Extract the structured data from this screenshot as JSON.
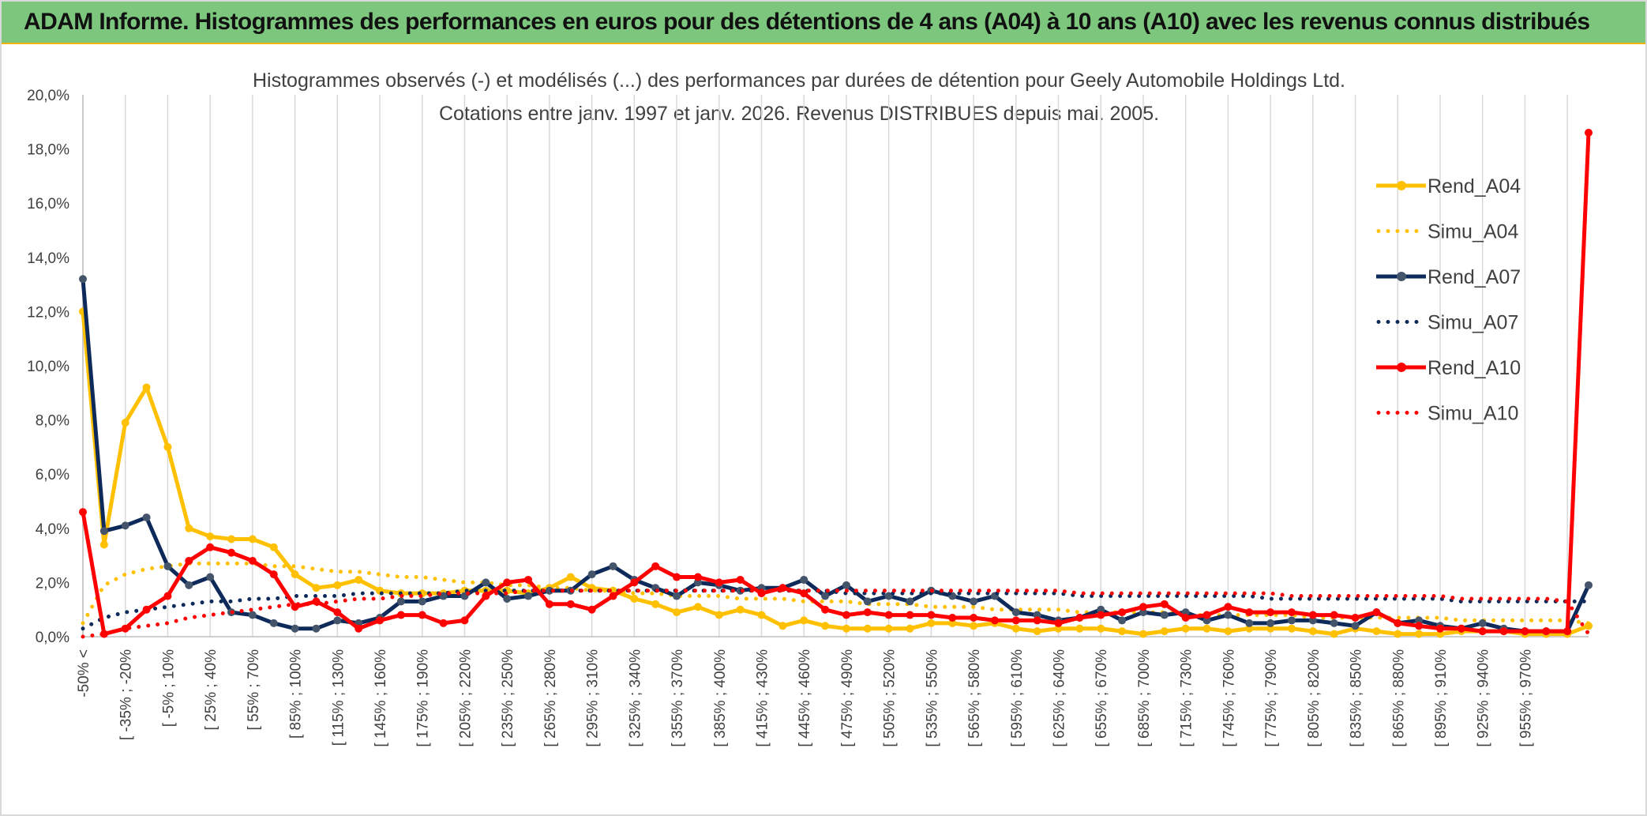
{
  "header": {
    "title": "ADAM Informe. Histogrammes des performances en euros pour des détentions de 4 ans (A04) à 10 ans (A10) avec les revenus connus distribués"
  },
  "chart_data": {
    "type": "line",
    "title_line1": "Histogrammes observés (-) et modélisés (...) des performances par durées de détention pour Geely Automobile Holdings Ltd.",
    "title_line2": "Cotations entre janv. 1997 et janv. 2026. Revenus DISTRIBUES depuis mai. 2005.",
    "ylim": [
      0,
      20
    ],
    "yticks": [
      "0,0%",
      "2,0%",
      "4,0%",
      "6,0%",
      "8,0%",
      "10,0%",
      "12,0%",
      "14,0%",
      "16,0%",
      "18,0%",
      "20,0%"
    ],
    "grid": "vertical",
    "legend_position": "right",
    "x_labels": [
      "-50% <",
      "[ -35% ; -20%",
      "[ -5% ; 10%",
      "[ 25% ; 40%",
      "[ 55% ; 70%",
      "[ 85% ; 100%",
      "[ 115% ; 130%",
      "[ 145% ; 160%",
      "[ 175% ; 190%",
      "[ 205% ; 220%",
      "[ 235% ; 250%",
      "[ 265% ; 280%",
      "[ 295% ; 310%",
      "[ 325% ; 340%",
      "[ 355% ; 370%",
      "[ 385% ; 400%",
      "[ 415% ; 430%",
      "[ 445% ; 460%",
      "[ 475% ; 490%",
      "[ 505% ; 520%",
      "[ 535% ; 550%",
      "[ 565% ; 580%",
      "[ 595% ; 610%",
      "[ 625% ; 640%",
      "[ 655% ; 670%",
      "[ 685% ; 700%",
      "[ 715% ; 730%",
      "[ 745% ; 760%",
      "[ 775% ; 790%",
      "[ 805% ; 820%",
      "[ 835% ; 850%",
      "[ 865% ; 880%",
      "[ 895% ; 910%",
      "[ 925% ; 940%",
      "[ 955% ; 970%"
    ],
    "series": [
      {
        "name": "Rend_A04",
        "style": "solid",
        "color": "#ffc000",
        "values": [
          12.0,
          3.4,
          7.9,
          9.2,
          7.0,
          4.0,
          3.7,
          3.6,
          3.6,
          3.3,
          2.3,
          1.8,
          1.9,
          2.1,
          1.7,
          1.6,
          1.6,
          1.6,
          1.7,
          1.7,
          1.7,
          1.6,
          1.8,
          2.2,
          1.8,
          1.7,
          1.4,
          1.2,
          0.9,
          1.1,
          0.8,
          1.0,
          0.8,
          0.4,
          0.6,
          0.4,
          0.3,
          0.3,
          0.3,
          0.3,
          0.5,
          0.5,
          0.4,
          0.5,
          0.3,
          0.2,
          0.3,
          0.3,
          0.3,
          0.2,
          0.1,
          0.2,
          0.3,
          0.3,
          0.2,
          0.3,
          0.3,
          0.3,
          0.2,
          0.1,
          0.3,
          0.2,
          0.1,
          0.1,
          0.1,
          0.2,
          0.2,
          0.2,
          0.1,
          0.1,
          0.1,
          0.4
        ]
      },
      {
        "name": "Simu_A04",
        "style": "dotted",
        "color": "#ffc000",
        "values": [
          0.5,
          1.9,
          2.3,
          2.5,
          2.6,
          2.7,
          2.7,
          2.7,
          2.7,
          2.6,
          2.6,
          2.5,
          2.4,
          2.4,
          2.3,
          2.2,
          2.2,
          2.1,
          2.0,
          2.0,
          1.9,
          1.9,
          1.8,
          1.8,
          1.7,
          1.7,
          1.6,
          1.6,
          1.5,
          1.5,
          1.5,
          1.4,
          1.4,
          1.4,
          1.3,
          1.3,
          1.3,
          1.2,
          1.2,
          1.2,
          1.1,
          1.1,
          1.1,
          1.0,
          1.0,
          1.0,
          1.0,
          0.9,
          0.9,
          0.9,
          0.9,
          0.9,
          0.8,
          0.8,
          0.8,
          0.8,
          0.8,
          0.8,
          0.7,
          0.7,
          0.7,
          0.7,
          0.7,
          0.7,
          0.7,
          0.6,
          0.6,
          0.6,
          0.6,
          0.6,
          0.6,
          0.5
        ]
      },
      {
        "name": "Rend_A07",
        "style": "solid",
        "color": "#0e2a5a",
        "values": [
          13.2,
          3.9,
          4.1,
          4.4,
          2.6,
          1.9,
          2.2,
          0.9,
          0.8,
          0.5,
          0.3,
          0.3,
          0.6,
          0.5,
          0.7,
          1.3,
          1.3,
          1.5,
          1.5,
          2.0,
          1.4,
          1.5,
          1.7,
          1.7,
          2.3,
          2.6,
          2.1,
          1.8,
          1.5,
          2.0,
          1.9,
          1.7,
          1.8,
          1.8,
          2.1,
          1.5,
          1.9,
          1.3,
          1.5,
          1.3,
          1.7,
          1.5,
          1.3,
          1.5,
          0.9,
          0.8,
          0.6,
          0.7,
          1.0,
          0.6,
          0.9,
          0.8,
          0.9,
          0.6,
          0.8,
          0.5,
          0.5,
          0.6,
          0.6,
          0.5,
          0.4,
          0.9,
          0.5,
          0.6,
          0.4,
          0.3,
          0.5,
          0.3,
          0.2,
          0.2,
          0.2,
          1.9
        ]
      },
      {
        "name": "Simu_A07",
        "style": "dotted",
        "color": "#0e2a5a",
        "values": [
          0.3,
          0.7,
          0.9,
          1.0,
          1.1,
          1.2,
          1.3,
          1.3,
          1.4,
          1.4,
          1.5,
          1.5,
          1.5,
          1.6,
          1.6,
          1.6,
          1.6,
          1.6,
          1.7,
          1.7,
          1.7,
          1.7,
          1.7,
          1.7,
          1.7,
          1.7,
          1.7,
          1.7,
          1.7,
          1.7,
          1.7,
          1.7,
          1.7,
          1.7,
          1.7,
          1.7,
          1.6,
          1.6,
          1.6,
          1.6,
          1.6,
          1.6,
          1.6,
          1.6,
          1.6,
          1.6,
          1.6,
          1.5,
          1.5,
          1.5,
          1.5,
          1.5,
          1.5,
          1.5,
          1.5,
          1.5,
          1.4,
          1.4,
          1.4,
          1.4,
          1.4,
          1.4,
          1.4,
          1.4,
          1.4,
          1.3,
          1.3,
          1.3,
          1.3,
          1.3,
          1.3,
          1.3
        ]
      },
      {
        "name": "Rend_A10",
        "style": "solid",
        "color": "#ff0000",
        "values": [
          4.6,
          0.1,
          0.3,
          1.0,
          1.5,
          2.8,
          3.3,
          3.1,
          2.8,
          2.3,
          1.1,
          1.3,
          0.9,
          0.3,
          0.6,
          0.8,
          0.8,
          0.5,
          0.6,
          1.5,
          2.0,
          2.1,
          1.2,
          1.2,
          1.0,
          1.5,
          2.0,
          2.6,
          2.2,
          2.2,
          2.0,
          2.1,
          1.6,
          1.8,
          1.6,
          1.0,
          0.8,
          0.9,
          0.8,
          0.8,
          0.8,
          0.7,
          0.7,
          0.6,
          0.6,
          0.6,
          0.5,
          0.7,
          0.8,
          0.9,
          1.1,
          1.2,
          0.7,
          0.8,
          1.1,
          0.9,
          0.9,
          0.9,
          0.8,
          0.8,
          0.7,
          0.9,
          0.5,
          0.4,
          0.3,
          0.3,
          0.2,
          0.2,
          0.2,
          0.2,
          0.2,
          18.6
        ]
      },
      {
        "name": "Simu_A10",
        "style": "dotted",
        "color": "#ff0000",
        "values": [
          0.0,
          0.1,
          0.3,
          0.4,
          0.5,
          0.7,
          0.8,
          0.9,
          1.0,
          1.1,
          1.2,
          1.2,
          1.3,
          1.4,
          1.4,
          1.5,
          1.5,
          1.6,
          1.6,
          1.6,
          1.6,
          1.7,
          1.7,
          1.7,
          1.7,
          1.7,
          1.7,
          1.7,
          1.7,
          1.7,
          1.7,
          1.7,
          1.7,
          1.7,
          1.7,
          1.7,
          1.7,
          1.7,
          1.7,
          1.7,
          1.7,
          1.7,
          1.7,
          1.7,
          1.7,
          1.7,
          1.7,
          1.6,
          1.6,
          1.6,
          1.6,
          1.6,
          1.6,
          1.6,
          1.6,
          1.6,
          1.6,
          1.5,
          1.5,
          1.5,
          1.5,
          1.5,
          1.5,
          1.5,
          1.5,
          1.4,
          1.4,
          1.4,
          1.4,
          1.4,
          1.3,
          0.1
        ]
      }
    ]
  }
}
